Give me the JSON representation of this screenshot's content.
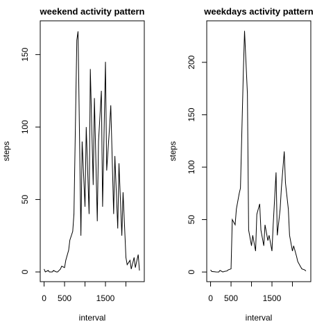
{
  "chart_data": [
    {
      "type": "line",
      "title": "weekend activity pattern",
      "x_label": "interval",
      "y_label": "steps",
      "color": "#000000",
      "x": [
        0,
        30,
        100,
        130,
        200,
        230,
        300,
        330,
        400,
        430,
        500,
        530,
        600,
        630,
        700,
        730,
        800,
        830,
        900,
        930,
        1000,
        1030,
        1100,
        1130,
        1200,
        1230,
        1300,
        1330,
        1400,
        1430,
        1500,
        1530,
        1600,
        1630,
        1700,
        1730,
        1800,
        1830,
        1900,
        1930,
        2000,
        2030,
        2100,
        2130,
        2200,
        2230,
        2300,
        2330
      ],
      "values": [
        2,
        0,
        1,
        0,
        0,
        1,
        0,
        0,
        2,
        4,
        3,
        8,
        15,
        22,
        28,
        40,
        160,
        166,
        25,
        90,
        45,
        100,
        40,
        140,
        60,
        120,
        35,
        90,
        125,
        45,
        145,
        70,
        100,
        115,
        40,
        80,
        30,
        75,
        25,
        55,
        10,
        5,
        8,
        2,
        10,
        3,
        12,
        1
      ],
      "xlim": [
        -94,
        2449
      ],
      "ylim": [
        -6.7,
        173.3
      ],
      "xticks": [
        0,
        500,
        {
          "value": 1000,
          "label": null
        },
        1500,
        {
          "value": 2000,
          "label": null
        }
      ],
      "yticks": [
        0,
        50,
        100,
        150
      ]
    },
    {
      "type": "line",
      "title": "weekdays activity pattern",
      "x_label": "interval",
      "y_label": "steps",
      "color": "#000000",
      "x": [
        0,
        30,
        100,
        130,
        200,
        230,
        300,
        330,
        400,
        430,
        500,
        530,
        600,
        630,
        700,
        730,
        800,
        830,
        900,
        930,
        1000,
        1030,
        1100,
        1130,
        1200,
        1230,
        1300,
        1330,
        1400,
        1430,
        1500,
        1530,
        1600,
        1630,
        1700,
        1730,
        1800,
        1830,
        1900,
        1930,
        2000,
        2030,
        2100,
        2130,
        2200,
        2230,
        2300,
        2330
      ],
      "values": [
        2,
        0.5,
        0.2,
        0.1,
        0,
        1.5,
        0,
        0.5,
        1,
        2,
        3,
        50,
        45,
        60,
        75,
        80,
        190,
        230,
        170,
        40,
        25,
        35,
        20,
        55,
        65,
        40,
        25,
        45,
        30,
        35,
        20,
        45,
        95,
        35,
        60,
        80,
        115,
        85,
        60,
        35,
        20,
        25,
        15,
        10,
        5,
        3,
        2,
        1
      ],
      "xlim": [
        -94,
        2449
      ],
      "ylim": [
        -9.2,
        239.6
      ],
      "xticks": [
        0,
        500,
        {
          "value": 1000,
          "label": null
        },
        1500,
        {
          "value": 2000,
          "label": null
        }
      ],
      "yticks": [
        0,
        50,
        100,
        150,
        200
      ]
    }
  ]
}
